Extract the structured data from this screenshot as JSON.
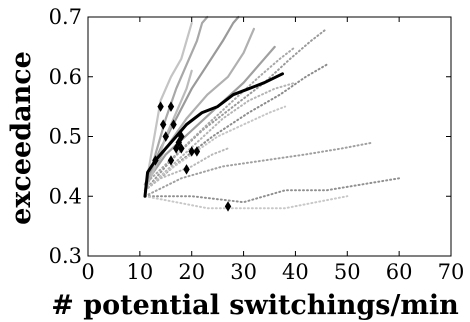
{
  "chart_data": {
    "type": "line",
    "title": "",
    "xlabel": "# potential switchings/min",
    "ylabel": "exceedance",
    "xlim": [
      0,
      70
    ],
    "ylim": [
      0.3,
      0.7
    ],
    "xticks": [
      "0",
      "10",
      "20",
      "30",
      "40",
      "50",
      "60",
      "70"
    ],
    "yticks": [
      "0.3",
      "0.4",
      "0.5",
      "0.6",
      "0.7"
    ],
    "grid": false,
    "legend": "none",
    "background_series": [
      {
        "style": "solid",
        "color": "#a8a8a8",
        "points": [
          [
            11,
            0.41
          ],
          [
            13,
            0.47
          ],
          [
            15,
            0.53
          ],
          [
            17,
            0.58
          ],
          [
            19,
            0.62
          ],
          [
            21,
            0.66
          ],
          [
            22,
            0.69
          ],
          [
            23,
            0.7
          ]
        ]
      },
      {
        "style": "solid",
        "color": "#9a9a9a",
        "points": [
          [
            11,
            0.42
          ],
          [
            14,
            0.48
          ],
          [
            17,
            0.53
          ],
          [
            20,
            0.58
          ],
          [
            23,
            0.62
          ],
          [
            26,
            0.66
          ],
          [
            28,
            0.69
          ],
          [
            29,
            0.7
          ]
        ]
      },
      {
        "style": "solid",
        "color": "#c4c4c4",
        "points": [
          [
            11,
            0.41
          ],
          [
            12,
            0.46
          ],
          [
            13,
            0.51
          ],
          [
            14,
            0.56
          ],
          [
            16,
            0.6
          ],
          [
            18,
            0.63
          ],
          [
            19,
            0.66
          ],
          [
            20,
            0.69
          ]
        ]
      },
      {
        "style": "solid",
        "color": "#b0b0b0",
        "points": [
          [
            11,
            0.42
          ],
          [
            15,
            0.48
          ],
          [
            19,
            0.53
          ],
          [
            23,
            0.57
          ],
          [
            27,
            0.6
          ],
          [
            30,
            0.64
          ],
          [
            32,
            0.68
          ]
        ]
      },
      {
        "style": "solid",
        "color": "#a0a0a0",
        "points": [
          [
            11,
            0.42
          ],
          [
            15,
            0.47
          ],
          [
            20,
            0.51
          ],
          [
            25,
            0.55
          ],
          [
            30,
            0.59
          ],
          [
            34,
            0.63
          ],
          [
            36,
            0.65
          ]
        ]
      },
      {
        "style": "solid",
        "color": "#bbbbbb",
        "points": [
          [
            11,
            0.41
          ],
          [
            13,
            0.45
          ],
          [
            15,
            0.5
          ],
          [
            17,
            0.54
          ],
          [
            19,
            0.58
          ],
          [
            20,
            0.61
          ]
        ]
      },
      {
        "style": "dotted",
        "color": "#9a9a9a",
        "points": [
          [
            11,
            0.41
          ],
          [
            16,
            0.46
          ],
          [
            22,
            0.51
          ],
          [
            28,
            0.55
          ],
          [
            34,
            0.59
          ],
          [
            39,
            0.63
          ],
          [
            43,
            0.66
          ],
          [
            46,
            0.68
          ]
        ]
      },
      {
        "style": "dotted",
        "color": "#8c8c8c",
        "points": [
          [
            11,
            0.41
          ],
          [
            18,
            0.46
          ],
          [
            24,
            0.5
          ],
          [
            31,
            0.54
          ],
          [
            37,
            0.57
          ],
          [
            42,
            0.6
          ],
          [
            46,
            0.62
          ]
        ]
      },
      {
        "style": "dotted",
        "color": "#a8a8a8",
        "points": [
          [
            11,
            0.42
          ],
          [
            17,
            0.47
          ],
          [
            23,
            0.52
          ],
          [
            28,
            0.56
          ],
          [
            33,
            0.6
          ],
          [
            37,
            0.63
          ],
          [
            40,
            0.65
          ]
        ]
      },
      {
        "style": "dotted",
        "color": "#b4b4b4",
        "points": [
          [
            11,
            0.41
          ],
          [
            16,
            0.45
          ],
          [
            21,
            0.49
          ],
          [
            26,
            0.53
          ],
          [
            31,
            0.56
          ],
          [
            36,
            0.58
          ],
          [
            40,
            0.59
          ]
        ]
      },
      {
        "style": "dotted",
        "color": "#c6c6c6",
        "points": [
          [
            11,
            0.41
          ],
          [
            15,
            0.44
          ],
          [
            20,
            0.47
          ],
          [
            25,
            0.5
          ],
          [
            30,
            0.52
          ],
          [
            35,
            0.54
          ],
          [
            38,
            0.55
          ]
        ]
      },
      {
        "style": "dotted",
        "color": "#a0a0a0",
        "points": [
          [
            11,
            0.4
          ],
          [
            18,
            0.43
          ],
          [
            26,
            0.45
          ],
          [
            34,
            0.46
          ],
          [
            42,
            0.47
          ],
          [
            49,
            0.48
          ],
          [
            55,
            0.49
          ]
        ]
      },
      {
        "style": "dotted",
        "color": "#909090",
        "points": [
          [
            11,
            0.4
          ],
          [
            20,
            0.4
          ],
          [
            30,
            0.39
          ],
          [
            38,
            0.41
          ],
          [
            46,
            0.41
          ],
          [
            53,
            0.42
          ],
          [
            60,
            0.43
          ]
        ]
      },
      {
        "style": "dotted",
        "color": "#c8c8c8",
        "points": [
          [
            11,
            0.4
          ],
          [
            17,
            0.39
          ],
          [
            23,
            0.38
          ],
          [
            30,
            0.38
          ],
          [
            38,
            0.38
          ],
          [
            44,
            0.39
          ],
          [
            50,
            0.4
          ]
        ]
      },
      {
        "style": "dotted",
        "color": "#b8b8b8",
        "points": [
          [
            11,
            0.41
          ],
          [
            14,
            0.43
          ],
          [
            17,
            0.44
          ],
          [
            20,
            0.45
          ],
          [
            24,
            0.47
          ],
          [
            27,
            0.48
          ]
        ]
      }
    ],
    "series": [
      {
        "style": "solid",
        "color": "#000000",
        "points": [
          [
            11,
            0.4
          ],
          [
            11.5,
            0.44
          ],
          [
            13,
            0.46
          ],
          [
            15,
            0.48
          ],
          [
            17,
            0.5
          ],
          [
            19,
            0.52
          ],
          [
            22,
            0.54
          ],
          [
            25,
            0.55
          ],
          [
            28,
            0.57
          ],
          [
            31,
            0.58
          ],
          [
            34,
            0.59
          ],
          [
            37.5,
            0.605
          ]
        ]
      }
    ],
    "markers": {
      "shape": "diamond",
      "color": "#000000",
      "points": [
        [
          13,
          0.46
        ],
        [
          14,
          0.55
        ],
        [
          15,
          0.5
        ],
        [
          14.5,
          0.52
        ],
        [
          16,
          0.46
        ],
        [
          16,
          0.55
        ],
        [
          16.5,
          0.52
        ],
        [
          17,
          0.48
        ],
        [
          17.5,
          0.49
        ],
        [
          18,
          0.5
        ],
        [
          18,
          0.48
        ],
        [
          19,
          0.445
        ],
        [
          20,
          0.475
        ],
        [
          21,
          0.475
        ],
        [
          27,
          0.383
        ]
      ]
    }
  }
}
